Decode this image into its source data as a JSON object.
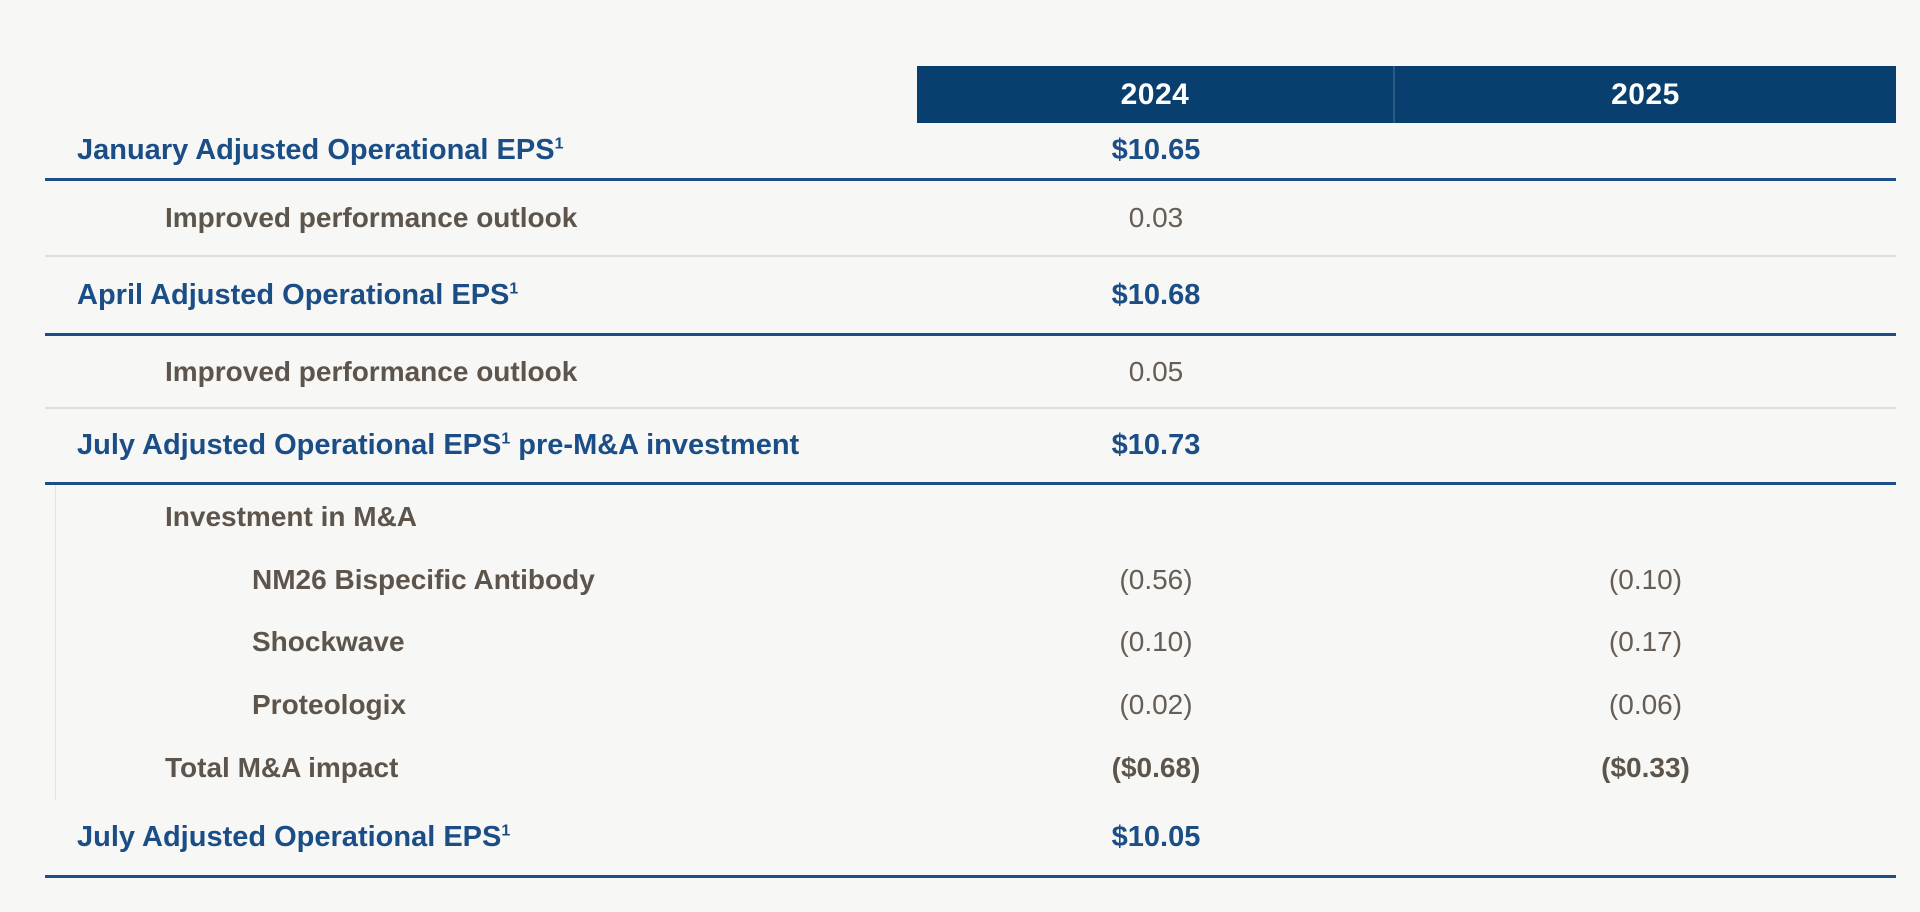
{
  "page": {
    "background": "#f7f7f5"
  },
  "colors": {
    "header_bar": "#083f6e",
    "header_text": "#ffffff",
    "navy_text": "#1b4d87",
    "divider_dark": "#1b4d87",
    "divider_light": "#dedede",
    "brown_label": "#5d554b",
    "brown_value": "#665e55",
    "group_box_border": "#e4e4e1"
  },
  "table": {
    "columns": [
      "2024",
      "2025"
    ],
    "rows": [
      {
        "label": "January Adjusted Operational EPS",
        "sup": "1",
        "suffix": "",
        "values": [
          "$10.65",
          ""
        ],
        "kind": "primary",
        "indent": 0,
        "divider": "dark",
        "in_box": false
      },
      {
        "label": "Improved performance outlook",
        "sup": "",
        "suffix": "",
        "values": [
          "0.03",
          ""
        ],
        "kind": "secondary",
        "indent": 1,
        "divider": "light",
        "in_box": false
      },
      {
        "label": "April Adjusted Operational EPS",
        "sup": "1",
        "suffix": "",
        "values": [
          "$10.68",
          ""
        ],
        "kind": "primary",
        "indent": 0,
        "divider": "dark",
        "in_box": false
      },
      {
        "label": "Improved performance outlook",
        "sup": "",
        "suffix": "",
        "values": [
          "0.05",
          ""
        ],
        "kind": "secondary",
        "indent": 1,
        "divider": "light",
        "in_box": false
      },
      {
        "label": "July Adjusted Operational EPS",
        "sup": "1",
        "suffix": " pre-M&A investment",
        "values": [
          "$10.73",
          ""
        ],
        "kind": "primary",
        "indent": 0,
        "divider": "dark",
        "in_box": false
      },
      {
        "label": "Investment in M&A",
        "sup": "",
        "suffix": "",
        "values": [
          "",
          ""
        ],
        "kind": "secondary",
        "indent": 1,
        "divider": "none",
        "in_box": true
      },
      {
        "label": "NM26 Bispecific Antibody",
        "sup": "",
        "suffix": "",
        "values": [
          "(0.56)",
          "(0.10)"
        ],
        "kind": "detail",
        "indent": 2,
        "divider": "none",
        "in_box": true
      },
      {
        "label": "Shockwave",
        "sup": "",
        "suffix": "",
        "values": [
          "(0.10)",
          "(0.17)"
        ],
        "kind": "detail",
        "indent": 2,
        "divider": "none",
        "in_box": true
      },
      {
        "label": "Proteologix",
        "sup": "",
        "suffix": "",
        "values": [
          "(0.02)",
          "(0.06)"
        ],
        "kind": "detail",
        "indent": 2,
        "divider": "none",
        "in_box": true
      },
      {
        "label": "Total M&A impact",
        "sup": "",
        "suffix": "",
        "values": [
          "($0.68)",
          "($0.33)"
        ],
        "kind": "total",
        "indent": 1,
        "divider": "none",
        "in_box": true
      },
      {
        "label": "July Adjusted Operational EPS",
        "sup": "1",
        "suffix": "",
        "values": [
          "$10.05",
          ""
        ],
        "kind": "primary",
        "indent": 0,
        "divider": "dark",
        "in_box": false
      }
    ]
  }
}
